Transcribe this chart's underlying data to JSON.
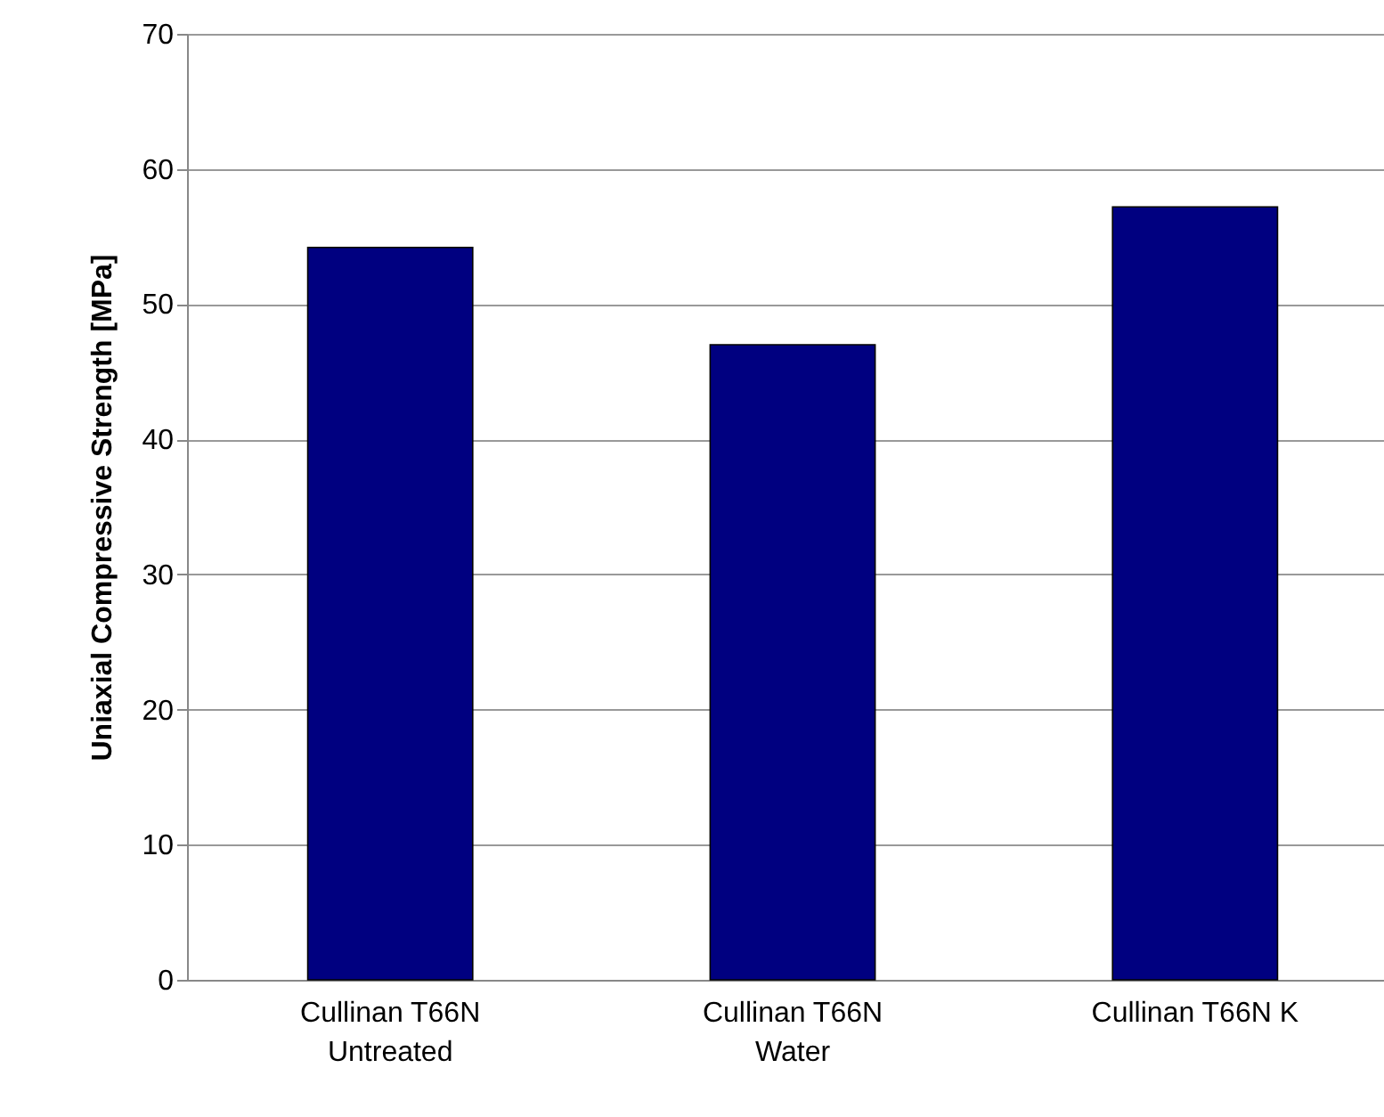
{
  "chart_data": {
    "type": "bar",
    "ylabel": "Uniaxial Compressive Strength [MPa]",
    "categories": [
      "Cullinan T66N Untreated",
      "Cullinan T66N Water",
      "Cullinan T66N K"
    ],
    "values": [
      54.2,
      47,
      57.2
    ],
    "color": "#000080",
    "ylim": [
      0,
      70
    ],
    "yticks": [
      0,
      10,
      20,
      30,
      40,
      50,
      60,
      70
    ],
    "grid": "y"
  }
}
